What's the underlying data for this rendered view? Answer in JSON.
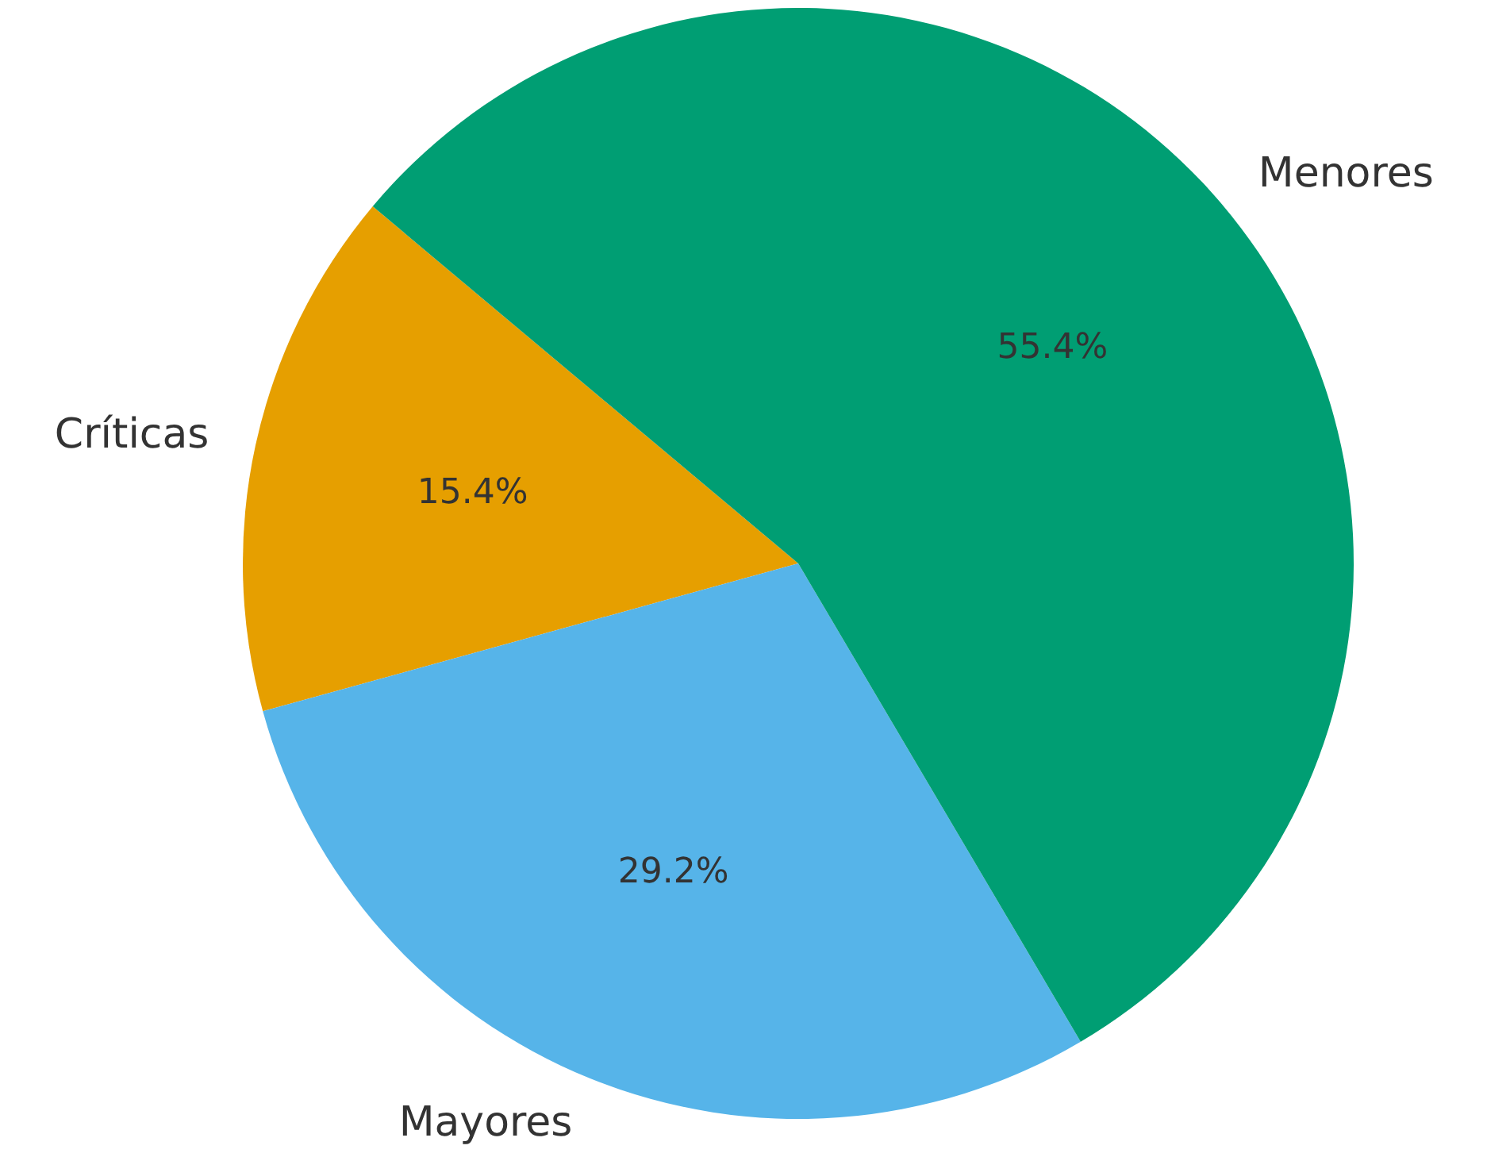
{
  "chart_data": {
    "type": "pie",
    "categories": [
      "Críticas",
      "Mayores",
      "Menores"
    ],
    "values": [
      15.4,
      29.2,
      55.4
    ],
    "colors": [
      "#e69f00",
      "#56b4e9",
      "#009e73"
    ],
    "value_labels": [
      "15.4%",
      "29.2%",
      "55.4%"
    ],
    "legend": false
  }
}
